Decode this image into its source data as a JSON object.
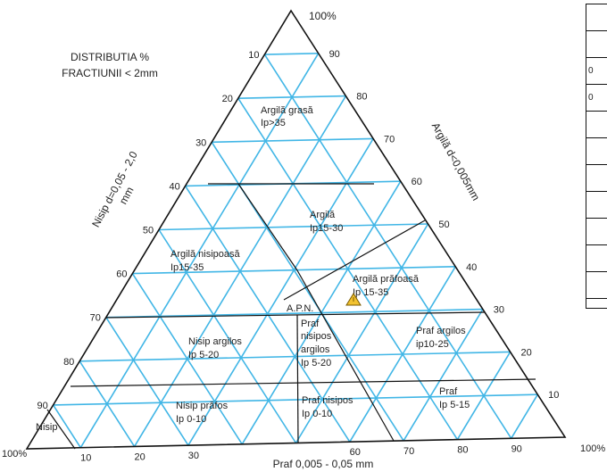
{
  "diagram": {
    "title_lines": [
      "DISTRIBUTIA %",
      "FRACTIUNII < 2mm"
    ],
    "axis_left": "Nisip d=0,05 - 2,0 mm",
    "axis_left_line1": "Nisip d=0,05 - 2,0",
    "axis_left_line2": "mm",
    "axis_right": "Argilă d<0,005mm",
    "axis_bottom": "Praf 0,005 - 0,05 mm",
    "apex_top": "100%",
    "corner_left": "100%",
    "corner_right": "100%",
    "left_ticks": [
      "10",
      "20",
      "30",
      "40",
      "50",
      "60",
      "70",
      "80",
      "90"
    ],
    "right_ticks": [
      "90",
      "80",
      "70",
      "60",
      "50",
      "40",
      "30",
      "20",
      "10"
    ],
    "bottom_ticks": [
      "10",
      "20",
      "30",
      "",
      "60",
      "70",
      "80",
      "90"
    ],
    "regions": [
      {
        "name": "Argilă grasă",
        "ip": "Ip>35"
      },
      {
        "name": "Argilă",
        "ip": "Ip15-30"
      },
      {
        "name": "Argilă nisipoasă",
        "ip": "Ip15-35"
      },
      {
        "name": "Argilă prăfoasă",
        "ip": "Ip 15-35"
      },
      {
        "name": "A.P.N."
      },
      {
        "name": "Praf nisipos argilos",
        "ip": "Ip 5-20",
        "lines": [
          "Praf",
          "nisipos",
          "argilos",
          "Ip 5-20"
        ]
      },
      {
        "name": "Nisip argilos",
        "ip": "Ip 5-20"
      },
      {
        "name": "Praf argilos",
        "ip": "ip10-25"
      },
      {
        "name": "Nisip prăfos",
        "ip": "Ip 0-10"
      },
      {
        "name": "Praf nisipos",
        "ip": "Ip 0-10"
      },
      {
        "name": "Praf",
        "ip": "Ip 5-15"
      },
      {
        "name": "Nisip"
      }
    ],
    "colors": {
      "grid": "#41b6e6",
      "boundary": "#111111",
      "marker": "#f2c230"
    }
  },
  "table": {
    "rows": [
      "",
      "",
      "0",
      "0",
      "",
      "",
      "",
      "",
      "",
      "",
      ""
    ]
  },
  "corner_right_label": "100%"
}
